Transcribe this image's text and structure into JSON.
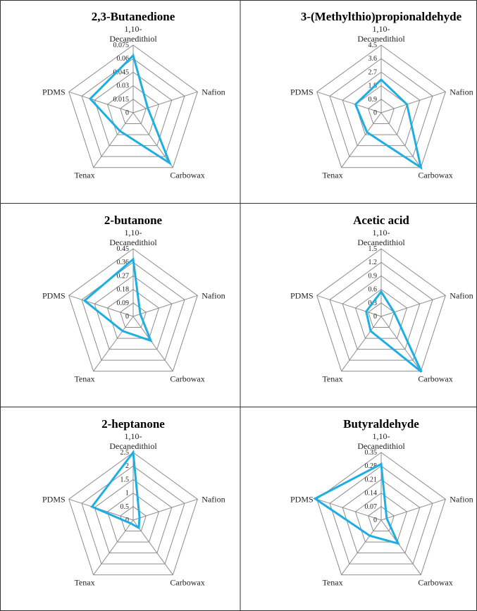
{
  "axes_order": [
    "1,10-Decanedithiol",
    "Nafion",
    "Carbowax",
    "Tenax",
    "PDMS"
  ],
  "axis_label_parts": {
    "top_line1": "1,10-",
    "top_line2": "Decanedithiol",
    "right": "Nafion",
    "lower_right": "Carbowax",
    "lower_left": "Tenax",
    "left": "PDMS"
  },
  "colors": {
    "series": "#1eaee2",
    "grid": "#8c8c8c",
    "border": "#333333"
  },
  "chart_data": [
    {
      "type": "radar",
      "title": "2,3-Butanedione",
      "ticks": [
        "0",
        "0.015",
        "0.03",
        "0.045",
        "0.06",
        "0.075"
      ],
      "rmax": 0.075,
      "series": [
        {
          "name": "2,3-Butanedione",
          "values": [
            0.0635,
            0.017,
            0.069,
            0.025,
            0.05
          ]
        }
      ]
    },
    {
      "type": "radar",
      "title": "3-(Methylthio)propionaldehyde",
      "ticks": [
        "0",
        "0.9",
        "1.8",
        "2.7",
        "3.6",
        "4.5"
      ],
      "rmax": 4.5,
      "series": [
        {
          "name": "3-(Methylthio)propionaldehyde",
          "values": [
            2.2,
            1.8,
            4.5,
            1.6,
            1.8
          ]
        }
      ]
    },
    {
      "type": "radar",
      "title": "2-butanone",
      "ticks": [
        "0",
        "0.09",
        "0.18",
        "0.27",
        "0.36",
        "0.45"
      ],
      "rmax": 0.45,
      "series": [
        {
          "name": "2-butanone",
          "values": [
            0.38,
            0.05,
            0.2,
            0.12,
            0.34
          ]
        }
      ]
    },
    {
      "type": "radar",
      "title": "Acetic acid",
      "ticks": [
        "0",
        "0.3",
        "0.6",
        "0.9",
        "1.2",
        "1.5"
      ],
      "rmax": 1.5,
      "series": [
        {
          "name": "Acetic acid",
          "values": [
            0.55,
            0.3,
            1.52,
            0.4,
            0.35
          ]
        }
      ]
    },
    {
      "type": "radar",
      "title": "2-heptanone",
      "ticks": [
        "0",
        "0.5",
        "1",
        "1.5",
        "2",
        "2.5"
      ],
      "rmax": 2.5,
      "series": [
        {
          "name": "2-heptanone",
          "values": [
            2.5,
            0.25,
            0.35,
            0.15,
            1.6
          ]
        }
      ]
    },
    {
      "type": "radar",
      "title": "Butyraldehyde",
      "ticks": [
        "0",
        "0.07",
        "0.14",
        "0.21",
        "0.28",
        "0.35"
      ],
      "rmax": 0.35,
      "series": [
        {
          "name": "Butyraldehyde",
          "values": [
            0.29,
            0.03,
            0.15,
            0.1,
            0.36
          ]
        }
      ]
    }
  ]
}
